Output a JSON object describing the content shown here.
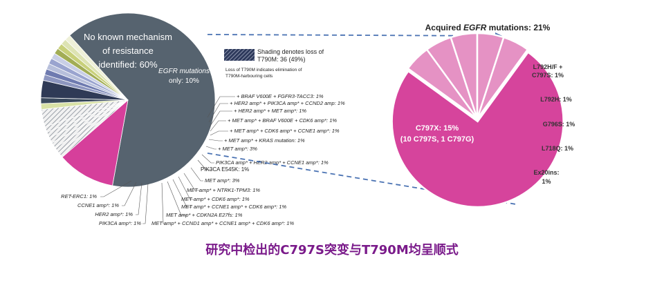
{
  "chart_data": [
    {
      "type": "pie",
      "title": "",
      "slices": [
        {
          "label": "No known mechanism of resistance identified: 60%",
          "value": 60,
          "color": "#56636f",
          "pattern": "none"
        },
        {
          "label": "EGFR mutations only: 10%",
          "value": 10,
          "color": "#d63f9b",
          "pattern": "none"
        },
        {
          "label": "+ BRAF V600E + FGFR3-TACC3: 1%",
          "value": 1,
          "color": "#e6e6e6",
          "pattern": "stripes"
        },
        {
          "label": "+ HER2 amp* + PIK3CA amp* + CCND2 amp: 1%",
          "value": 1,
          "color": "#e6e6e6",
          "pattern": "stripes"
        },
        {
          "label": "+ HER2 amp* + MET amp*: 1%",
          "value": 1,
          "color": "#e6e6e6",
          "pattern": "stripes"
        },
        {
          "label": "+ MET amp* + BRAF V600E + CDK6 amp*: 1%",
          "value": 1,
          "color": "#e6e6e6",
          "pattern": "stripes"
        },
        {
          "label": "+ MET amp* + CDK6 amp* + CCNE1 amp*: 1%",
          "value": 1,
          "color": "#e6e6e6",
          "pattern": "stripes"
        },
        {
          "label": "+ MET amp* + KRAS mutation: 1%",
          "value": 1,
          "color": "#e6e6e6",
          "pattern": "stripes"
        },
        {
          "label": "+ MET amp*: 3%",
          "value": 3,
          "color": "#e6e6e6",
          "pattern": "stripes"
        },
        {
          "label": "PIK3CA amp* + HER2 amp* + CCNE1 amp*: 1%",
          "value": 1,
          "color": "#d9e2a6",
          "pattern": "none"
        },
        {
          "label": "PIK3CA E545K: 1%",
          "value": 1,
          "color": "#3c4b5e",
          "pattern": "none"
        },
        {
          "label": "MET amp*: 3%",
          "value": 3,
          "color": "#2f3a56",
          "pattern": "none"
        },
        {
          "label": "MET amp* + NTRK1-TPM3: 1%",
          "value": 1,
          "color": "#8d96c0",
          "pattern": "none"
        },
        {
          "label": "MET amp* + CDK6 amp*: 1%",
          "value": 1,
          "color": "#6f7bb0",
          "pattern": "none"
        },
        {
          "label": "MET amp* + CCNE1 amp* + CDK6 amp*: 1%",
          "value": 1,
          "color": "#b7bfdb",
          "pattern": "none"
        },
        {
          "label": "MET amp* + CDKN2A E27fs: 1%",
          "value": 1,
          "color": "#9aa4cf",
          "pattern": "none"
        },
        {
          "label": "MET amp* + CCND1 amp* + CCNE1 amp* + CDK6 amp*: 1%",
          "value": 1,
          "color": "#c9cfe6",
          "pattern": "none"
        },
        {
          "label": "PIK3CA amp*: 1%",
          "value": 1,
          "color": "#a2ad55",
          "pattern": "none"
        },
        {
          "label": "HER2 amp*: 1%",
          "value": 1,
          "color": "#c8d07a",
          "pattern": "none"
        },
        {
          "label": "CCNE1 amp*: 1%",
          "value": 1,
          "color": "#dde3b3",
          "pattern": "none"
        },
        {
          "label": "RET-ERC1: 1%",
          "value": 1,
          "color": "#eef0d8",
          "pattern": "none"
        }
      ],
      "legend": {
        "shading_text_1": "Shading denotes loss of",
        "shading_text_2": "T790M: 36 (49%)",
        "note_1": "Loss of T790M indicates elimination of",
        "note_2": "T790M-harbouring cells"
      }
    },
    {
      "type": "pie",
      "title": "Acquired EGFR mutations: 21%",
      "slices": [
        {
          "label": "C797X: 15% (10 C797S, 1 C797G)",
          "value": 15,
          "color": "#d6449c"
        },
        {
          "label": "L792H/F + C797S: 1%",
          "value": 1,
          "color": "#e592c4"
        },
        {
          "label": "L792H: 1%",
          "value": 1,
          "color": "#e592c4"
        },
        {
          "label": "G796S: 1%",
          "value": 1,
          "color": "#e592c4"
        },
        {
          "label": "L718Q: 1%",
          "value": 1,
          "color": "#e592c4"
        },
        {
          "label": "Ex20ins: 1%",
          "value": 1,
          "color": "#e592c4"
        }
      ]
    }
  ],
  "caption": "研究中检出的C797S突变与T790M均呈顺式",
  "text": {
    "no_known_1": "No known mechanism",
    "no_known_2": "of resistance",
    "no_known_3": "identified: 60%",
    "egfr_only_1": "EGFR mutations",
    "egfr_only_2": "only: 10%",
    "right_title_pre": "Acquired ",
    "right_title_em": "EGFR",
    "right_title_post": " mutations: 21%",
    "c797x_1": "C797X: 15%",
    "c797x_2": "(10 C797S, 1 C797G)",
    "l792hf_1": "L792H/F +",
    "l792hf_2": "C797S: 1%",
    "l792h": "L792H: 1%",
    "g796s": "G796S: 1%",
    "l718q": "L718Q: 1%",
    "ex20_1": "Ex20ins:",
    "ex20_2": "1%"
  }
}
